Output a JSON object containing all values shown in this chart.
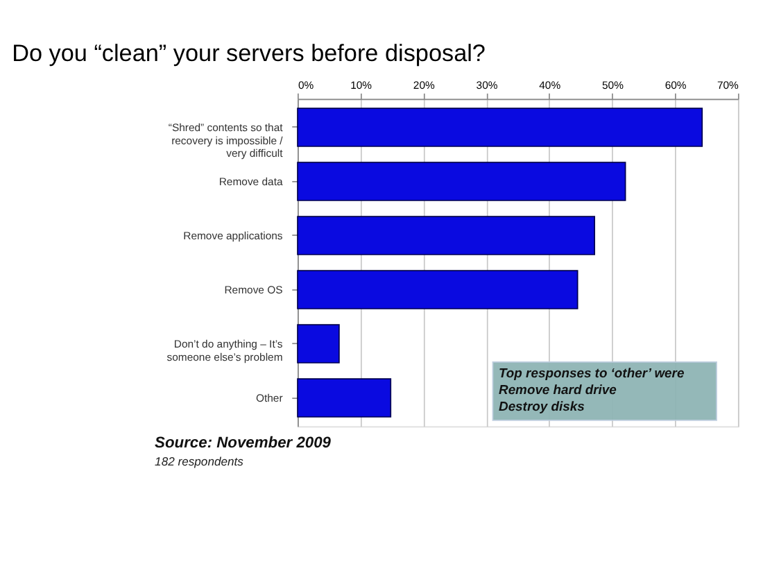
{
  "chart_data": {
    "type": "bar",
    "orientation": "horizontal",
    "title": "Do you “clean” your servers before disposal?",
    "categories": [
      "“Shred” contents so that recovery is impossible / very difficult",
      "Remove data",
      "Remove applications",
      "Remove OS",
      "Don’t do anything – It’s someone else’s problem",
      "Other"
    ],
    "values": [
      64.3,
      52.1,
      47.2,
      44.5,
      6.6,
      14.8
    ],
    "color": "#0a0ae0",
    "xlim": [
      0,
      70
    ],
    "xticks": [
      {
        "value": 0,
        "label": "0%"
      },
      {
        "value": 10,
        "label": "10%"
      },
      {
        "value": 20,
        "label": "20%"
      },
      {
        "value": 30,
        "label": "30%"
      },
      {
        "value": 40,
        "label": "40%"
      },
      {
        "value": 50,
        "label": "50%"
      },
      {
        "value": 60,
        "label": "60%"
      },
      {
        "value": 70,
        "label": "70%"
      }
    ],
    "grid": "x",
    "annotations": [
      "Top responses to ‘other’ were\nRemove hard drive\nDestroy disks",
      "Source: November 2009",
      "182 respondents"
    ]
  }
}
